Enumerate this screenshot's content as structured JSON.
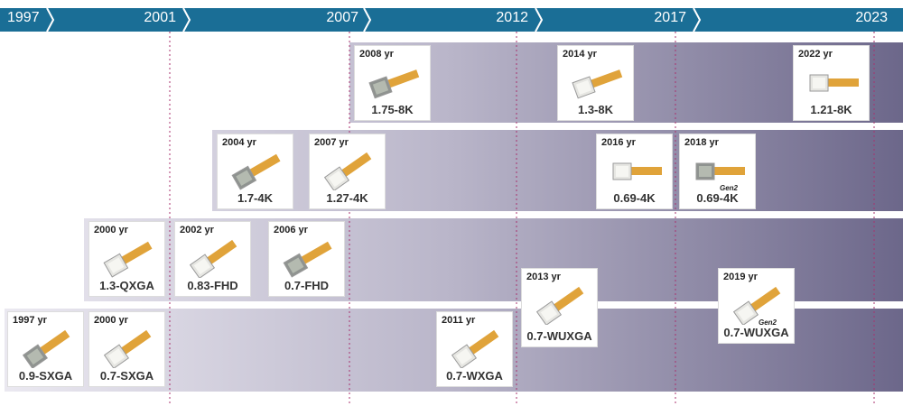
{
  "header": {
    "years": [
      "1997",
      "2001",
      "2007",
      "2012",
      "2017",
      "2023"
    ]
  },
  "products": [
    {
      "year": "2008 yr",
      "name": "1.75-8K"
    },
    {
      "year": "2014 yr",
      "name": "1.3-8K"
    },
    {
      "year": "2022 yr",
      "name": "1.21-8K"
    },
    {
      "year": "2004 yr",
      "name": "1.7-4K"
    },
    {
      "year": "2007 yr",
      "name": "1.27-4K"
    },
    {
      "year": "2016 yr",
      "name": "0.69-4K"
    },
    {
      "year": "2018 yr",
      "name": "0.69-4K",
      "badge": "Gen2"
    },
    {
      "year": "2000 yr",
      "name": "1.3-QXGA"
    },
    {
      "year": "2002 yr",
      "name": "0.83-FHD"
    },
    {
      "year": "2006 yr",
      "name": "0.7-FHD"
    },
    {
      "year": "2013 yr",
      "name": "0.7-WUXGA"
    },
    {
      "year": "2019 yr",
      "name": "0.7-WUXGA",
      "badge": "Gen2"
    },
    {
      "year": "1997 yr",
      "name": "0.9-SXGA"
    },
    {
      "year": "2000 yr",
      "name": "0.7-SXGA"
    },
    {
      "year": "2011 yr",
      "name": "0.7-WXGA"
    }
  ]
}
